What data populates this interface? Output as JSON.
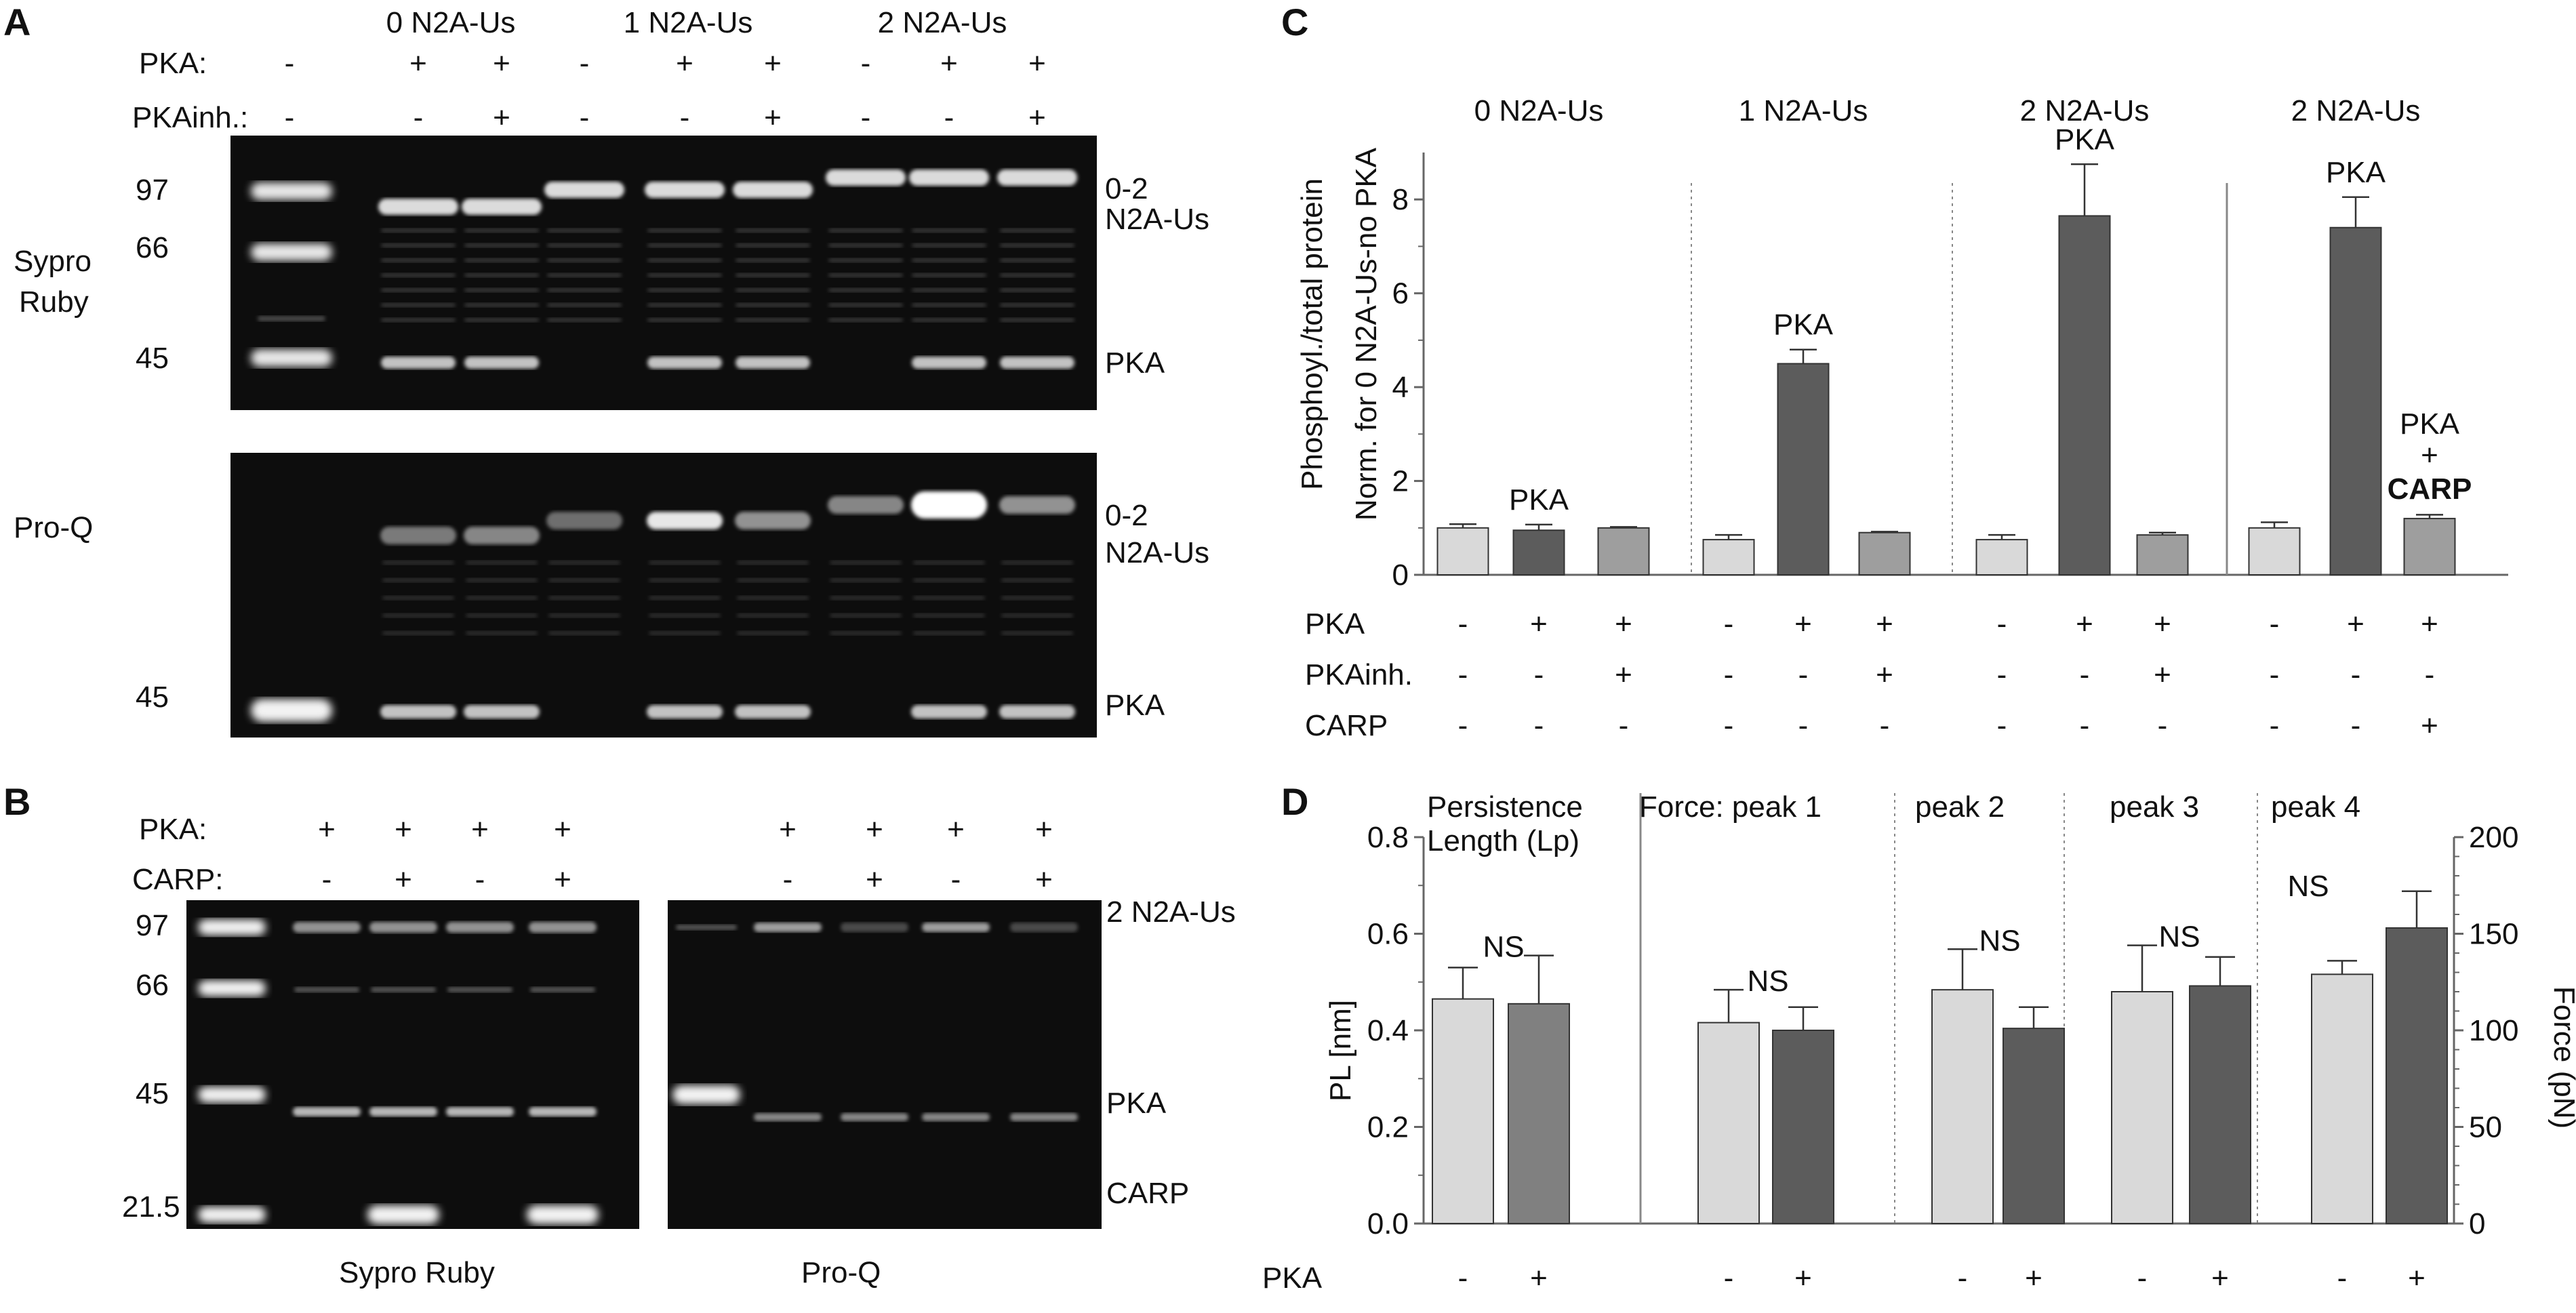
{
  "panels": {
    "A": {
      "letter": "A",
      "groups": [
        "0 N2A-Us",
        "1 N2A-Us",
        "2 N2A-Us"
      ],
      "row_labels": [
        "PKA:",
        "PKAinh.:"
      ],
      "pka_signs": [
        "-",
        "+",
        "+",
        "-",
        "+",
        "+",
        "-",
        "+",
        "+"
      ],
      "pkainh_signs": [
        "-",
        "-",
        "+",
        "-",
        "-",
        "+",
        "-",
        "-",
        "+"
      ],
      "top_gel": {
        "stain_label_1": "Sypro",
        "stain_label_2": "Ruby",
        "markers": [
          "97",
          "66",
          "45"
        ],
        "right_label_1": "0-2",
        "right_label_2": "N2A-Us",
        "right_label_3": "PKA"
      },
      "bottom_gel": {
        "stain_label": "Pro-Q",
        "markers": [
          "45"
        ],
        "right_label_1": "0-2",
        "right_label_2": "N2A-Us",
        "right_label_3": "PKA"
      }
    },
    "B": {
      "letter": "B",
      "row_labels": [
        "PKA:",
        "CARP:"
      ],
      "pka_signs": [
        "+",
        "+",
        "+",
        "+"
      ],
      "carp_signs": [
        "-",
        "+",
        "-",
        "+"
      ],
      "markers": [
        "97",
        "66",
        "45",
        "21.5"
      ],
      "right_labels": [
        "2 N2A-Us",
        "PKA",
        "CARP"
      ],
      "gel_captions": [
        "Sypro Ruby",
        "Pro-Q"
      ]
    },
    "C": {
      "letter": "C",
      "ylabel_1": "Phosphoyl./total protein",
      "ylabel_2": "Norm. for 0 N2A-Us-no PKA",
      "groups": [
        "0 N2A-Us",
        "1 N2A-Us",
        "2 N2A-Us",
        "2 N2A-Us"
      ],
      "bar_annotations": [
        "PKA",
        "PKA",
        "PKA",
        "PKA"
      ],
      "carp_annotation": [
        "PKA",
        "+",
        "CARP"
      ],
      "row_labels": [
        "PKA",
        "PKAinh.",
        "CARP"
      ],
      "pka_signs": [
        "-",
        "+",
        "+",
        "-",
        "+",
        "+",
        "-",
        "+",
        "+",
        "-",
        "+",
        "+"
      ],
      "pkainh_signs": [
        "-",
        "-",
        "+",
        "-",
        "-",
        "+",
        "-",
        "-",
        "+",
        "-",
        "-",
        "-"
      ],
      "carp_signs": [
        "-",
        "-",
        "-",
        "-",
        "-",
        "-",
        "-",
        "-",
        "-",
        "-",
        "-",
        "+"
      ]
    },
    "D": {
      "letter": "D",
      "ylabel_left": "PL [nm]",
      "ylabel_right": "Force (pN)",
      "section_labels": [
        "Persistence",
        "Length (Lp)",
        "Force:  peak 1",
        "peak  2",
        "peak 3",
        "peak 4"
      ],
      "ns_labels": [
        "NS",
        "NS",
        "NS",
        "NS",
        "NS"
      ],
      "row_label": "PKA",
      "pka_signs": [
        "-",
        "+",
        "-",
        "+",
        "-",
        "+",
        "-",
        "+",
        "-",
        "+"
      ]
    }
  },
  "chart_data": [
    {
      "type": "bar",
      "panel": "C",
      "ylabel": "Phosphoyl./total protein Norm. for 0 N2A-Us-no PKA",
      "ylim": [
        0,
        9
      ],
      "yticks": [
        0,
        2,
        4,
        6,
        8
      ],
      "groups": [
        "0 N2A-Us",
        "1 N2A-Us",
        "2 N2A-Us",
        "2 N2A-Us"
      ],
      "values": [
        1.0,
        0.95,
        1.0,
        0.75,
        4.5,
        0.9,
        0.75,
        7.65,
        0.85,
        1.0,
        7.4,
        1.2
      ],
      "errors": [
        0.08,
        0.12,
        0.02,
        0.1,
        0.3,
        0.02,
        0.1,
        1.1,
        0.05,
        0.12,
        0.65,
        0.08
      ],
      "bar_colors": [
        "#d9d9d9",
        "#5c5c5c",
        "#9e9e9e",
        "#d9d9d9",
        "#5c5c5c",
        "#9e9e9e",
        "#d9d9d9",
        "#5c5c5c",
        "#9e9e9e",
        "#d9d9d9",
        "#5c5c5c",
        "#9e9e9e"
      ]
    },
    {
      "type": "bar",
      "panel": "D",
      "ylabel_left": "PL [nm]",
      "ylabel_right": "Force (pN)",
      "ylim_left": [
        0,
        0.8
      ],
      "yticks_left": [
        "0.0",
        "0.2",
        "0.4",
        "0.6",
        "0.8"
      ],
      "ylim_right": [
        0,
        200
      ],
      "yticks_right": [
        "0",
        "50",
        "100",
        "150",
        "200"
      ],
      "left_axis_values": [
        0.465,
        0.455
      ],
      "left_axis_errors": [
        0.065,
        0.1
      ],
      "right_axis_values": [
        104,
        100,
        121,
        101,
        120,
        123,
        129,
        153
      ],
      "right_axis_errors": [
        17,
        12,
        21,
        11,
        24,
        15,
        7,
        19
      ],
      "bar_colors": [
        "#d9d9d9",
        "#808080",
        "#d9d9d9",
        "#5c5c5c",
        "#d9d9d9",
        "#5c5c5c",
        "#d9d9d9",
        "#5c5c5c",
        "#d9d9d9",
        "#5c5c5c"
      ]
    }
  ]
}
